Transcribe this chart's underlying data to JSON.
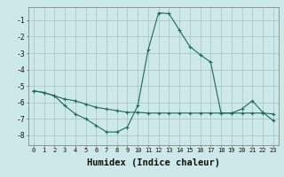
{
  "x": [
    0,
    1,
    2,
    3,
    4,
    5,
    6,
    7,
    8,
    9,
    10,
    11,
    12,
    13,
    14,
    15,
    16,
    17,
    18,
    19,
    20,
    21,
    22,
    23
  ],
  "line1": [
    -5.3,
    -5.4,
    -5.6,
    -5.8,
    -5.9,
    -6.1,
    -6.3,
    -6.4,
    -6.5,
    -6.6,
    -6.6,
    -6.65,
    -6.65,
    -6.65,
    -6.65,
    -6.65,
    -6.65,
    -6.65,
    -6.65,
    -6.65,
    -6.65,
    -6.65,
    -6.65,
    -6.7
  ],
  "line2": [
    -5.3,
    -5.4,
    -5.6,
    -6.2,
    -6.7,
    -7.0,
    -7.4,
    -7.8,
    -7.8,
    -7.5,
    -6.2,
    -2.8,
    -0.55,
    -0.6,
    -1.6,
    -2.6,
    -3.1,
    -3.55,
    -6.65,
    -6.65,
    -6.4,
    -5.9,
    -6.6,
    -7.1
  ],
  "xlabel": "Humidex (Indice chaleur)",
  "xtick_labels": [
    "0",
    "1",
    "2",
    "3",
    "4",
    "5",
    "6",
    "7",
    "8",
    "9",
    "10",
    "11",
    "12",
    "13",
    "14",
    "15",
    "16",
    "17",
    "18",
    "19",
    "20",
    "21",
    "22",
    "23"
  ],
  "ytick_values": [
    -1,
    -2,
    -3,
    -4,
    -5,
    -6,
    -7,
    -8
  ],
  "ylim": [
    -8.6,
    -0.2
  ],
  "xlim": [
    -0.5,
    23.5
  ],
  "bg_color": "#cce8e8",
  "grid_color": "#aac8c8",
  "line_color": "#1a6b5a",
  "xlabel_fontsize": 7.5
}
